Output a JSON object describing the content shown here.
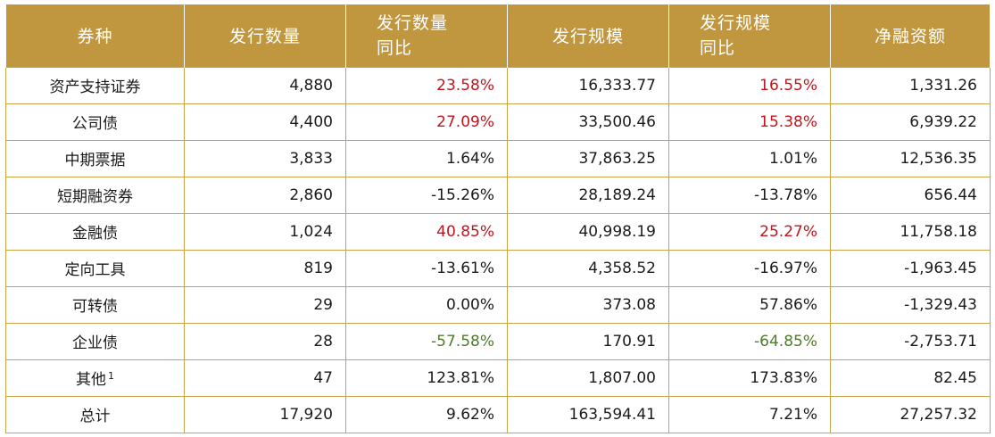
{
  "headers": [
    "券种",
    "发行数量",
    [
      "发行数量",
      "同比"
    ],
    "发行规模",
    [
      "发行规模",
      "同比"
    ],
    "净融资额"
  ],
  "rows": [
    {
      "name": "资产支持证券",
      "count": "4,880",
      "count_yoy": "23.58%",
      "scale": "16,333.77",
      "scale_yoy": "16.55%",
      "net": "1,331.26",
      "count_yoy_color": "red",
      "scale_yoy_color": "red"
    },
    {
      "name": "公司债",
      "count": "4,400",
      "count_yoy": "27.09%",
      "scale": "33,500.46",
      "scale_yoy": "15.38%",
      "net": "6,939.22",
      "count_yoy_color": "red",
      "scale_yoy_color": "red"
    },
    {
      "name": "中期票据",
      "count": "3,833",
      "count_yoy": "1.64%",
      "scale": "37,863.25",
      "scale_yoy": "1.01%",
      "net": "12,536.35",
      "count_yoy_color": "black",
      "scale_yoy_color": "black"
    },
    {
      "name": "短期融资券",
      "count": "2,860",
      "count_yoy": "-15.26%",
      "scale": "28,189.24",
      "scale_yoy": "-13.78%",
      "net": "656.44",
      "count_yoy_color": "black",
      "scale_yoy_color": "black"
    },
    {
      "name": "金融债",
      "count": "1,024",
      "count_yoy": "40.85%",
      "scale": "40,998.19",
      "scale_yoy": "25.27%",
      "net": "11,758.18",
      "count_yoy_color": "red",
      "scale_yoy_color": "red"
    },
    {
      "name": "定向工具",
      "count": "819",
      "count_yoy": "-13.61%",
      "scale": "4,358.52",
      "scale_yoy": "-16.97%",
      "net": "-1,963.45",
      "count_yoy_color": "black",
      "scale_yoy_color": "black"
    },
    {
      "name": "可转债",
      "count": "29",
      "count_yoy": "0.00%",
      "scale": "373.08",
      "scale_yoy": "57.86%",
      "net": "-1,329.43",
      "count_yoy_color": "black",
      "scale_yoy_color": "black"
    },
    {
      "name": "企业债",
      "count": "28",
      "count_yoy": "-57.58%",
      "scale": "170.91",
      "scale_yoy": "-64.85%",
      "net": "-2,753.71",
      "count_yoy_color": "green",
      "scale_yoy_color": "green"
    },
    {
      "name": "其他",
      "sup": "1",
      "count": "47",
      "count_yoy": "123.81%",
      "scale": "1,807.00",
      "scale_yoy": "173.83%",
      "net": "82.45",
      "count_yoy_color": "black",
      "scale_yoy_color": "black"
    },
    {
      "name": "总计",
      "count": "17,920",
      "count_yoy": "9.62%",
      "scale": "163,594.41",
      "scale_yoy": "7.21%",
      "net": "27,257.32",
      "count_yoy_color": "black",
      "scale_yoy_color": "black"
    }
  ],
  "colors": {
    "header_bg": "#C0973F",
    "border": "#C9A24A",
    "red": "#C0151C",
    "green": "#4E7A2A"
  }
}
